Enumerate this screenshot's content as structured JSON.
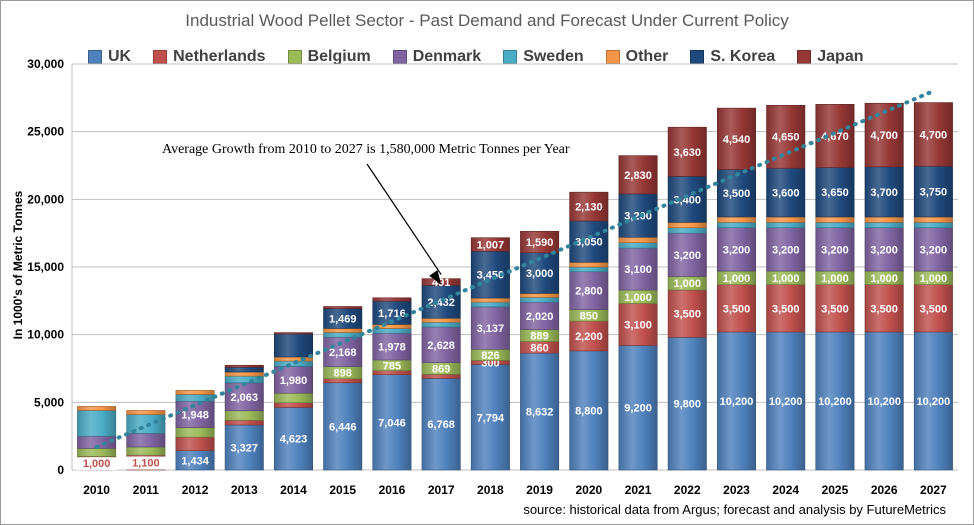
{
  "chart_data": {
    "type": "bar",
    "stacked": true,
    "title": "Industrial Wood Pellet Sector - Past Demand and Forecast Under Current Policy",
    "ylabel": "In 1000's of Metric Tonnes",
    "xlabel": "",
    "ylim": [
      0,
      30000
    ],
    "yticks": [
      "0",
      "5,000",
      "10,000",
      "15,000",
      "20,000",
      "25,000",
      "30,000"
    ],
    "grid": true,
    "legend_position": "top",
    "categories": [
      "2010",
      "2011",
      "2012",
      "2013",
      "2014",
      "2015",
      "2016",
      "2017",
      "2018",
      "2019",
      "2020",
      "2021",
      "2022",
      "2023",
      "2024",
      "2025",
      "2026",
      "2027"
    ],
    "series": [
      {
        "name": "UK",
        "color": "#4f81bd",
        "values": [
          0,
          0,
          1434,
          3327,
          4623,
          6446,
          7046,
          6768,
          7794,
          8632,
          8800,
          9200,
          9800,
          10200,
          10200,
          10200,
          10200,
          10200
        ],
        "labels": [
          "",
          "",
          "1,434",
          "3,327",
          "4,623",
          "6,446",
          "7,046",
          "6,768",
          "7,794",
          "8,632",
          "8,800",
          "9,200",
          "9,800",
          "10,200",
          "10,200",
          "10,200",
          "10,200",
          "10,200"
        ]
      },
      {
        "name": "Netherlands",
        "color": "#c0504d",
        "values": [
          1000,
          1100,
          1000,
          350,
          350,
          300,
          300,
          300,
          300,
          860,
          2200,
          3100,
          3500,
          3500,
          3500,
          3500,
          3500,
          3500
        ],
        "labels": [
          "1,000",
          "1,100",
          "",
          "",
          "",
          "",
          "",
          "",
          "300",
          "860",
          "2,200",
          "3,100",
          "3,500",
          "3,500",
          "3,500",
          "3,500",
          "3,500",
          "3,500"
        ]
      },
      {
        "name": "Belgium",
        "color": "#9bbb59",
        "values": [
          600,
          600,
          700,
          700,
          700,
          898,
          785,
          869,
          826,
          889,
          850,
          1000,
          1000,
          1000,
          1000,
          1000,
          1000,
          1000
        ],
        "labels": [
          "",
          "",
          "",
          "",
          "",
          "898",
          "785",
          "869",
          "826",
          "889",
          "850",
          "1,000",
          "1,000",
          "1,000",
          "1,000",
          "1,000",
          "1,000",
          "1,000"
        ]
      },
      {
        "name": "Denmark",
        "color": "#8064a2",
        "values": [
          900,
          1000,
          1948,
          2063,
          1980,
          2168,
          1978,
          2628,
          3137,
          2020,
          2800,
          3100,
          3200,
          3200,
          3200,
          3200,
          3200,
          3200
        ],
        "labels": [
          "",
          "",
          "1,948",
          "2,063",
          "1,980",
          "2,168",
          "1,978",
          "2,628",
          "3,137",
          "2,020",
          "2,800",
          "3,100",
          "3,200",
          "3,200",
          "3,200",
          "3,200",
          "3,200",
          "3,200"
        ]
      },
      {
        "name": "Sweden",
        "color": "#4bacc6",
        "values": [
          1900,
          1400,
          500,
          500,
          400,
          350,
          350,
          350,
          350,
          350,
          350,
          400,
          400,
          400,
          400,
          400,
          400,
          400
        ],
        "labels": [
          "",
          "",
          "",
          "",
          "",
          "",
          "",
          "",
          "",
          "",
          "",
          "",
          "",
          "",
          "",
          "",
          "",
          ""
        ]
      },
      {
        "name": "Other",
        "color": "#f79646",
        "values": [
          300,
          300,
          300,
          300,
          300,
          300,
          300,
          300,
          300,
          300,
          350,
          400,
          400,
          400,
          400,
          400,
          400,
          400
        ],
        "labels": [
          "",
          "",
          "",
          "",
          "",
          "",
          "",
          "",
          "",
          "",
          "",
          "",
          "",
          "",
          "",
          "",
          "",
          ""
        ]
      },
      {
        "name": "S. Korea",
        "color": "#1f497d",
        "values": [
          0,
          0,
          0,
          350,
          1700,
          1469,
          1716,
          2432,
          3450,
          3000,
          3050,
          3200,
          3400,
          3500,
          3600,
          3650,
          3700,
          3750
        ],
        "labels": [
          "",
          "",
          "",
          "",
          "",
          "1,469",
          "1,716",
          "2,432",
          "3,450",
          "3,000",
          "3,050",
          "3,200",
          "3,400",
          "3,500",
          "3,600",
          "3,650",
          "3,700",
          "3,750"
        ]
      },
      {
        "name": "Japan",
        "color": "#953735",
        "values": [
          0,
          0,
          0,
          150,
          100,
          150,
          250,
          491,
          1007,
          1590,
          2130,
          2830,
          3630,
          4540,
          4650,
          4670,
          4700,
          4700
        ],
        "labels": [
          "",
          "",
          "",
          "",
          "",
          "",
          "",
          "491",
          "1,007",
          "1,590",
          "2,130",
          "2,830",
          "3,630",
          "4,540",
          "4,650",
          "4,670",
          "4,700",
          "4,700"
        ]
      }
    ],
    "trendline": {
      "style": "dotted",
      "color": "#31859c",
      "from": [
        2010,
        1700
      ],
      "to": [
        2027,
        28000
      ]
    },
    "annotation": "Average Growth from 2010 to 2027 is 1,580,000 Metric Tonnes per Year",
    "annotation_target": {
      "category": "2017",
      "value": 13700
    },
    "source": "source: historical data from Argus; forecast and analysis by FutureMetrics"
  }
}
